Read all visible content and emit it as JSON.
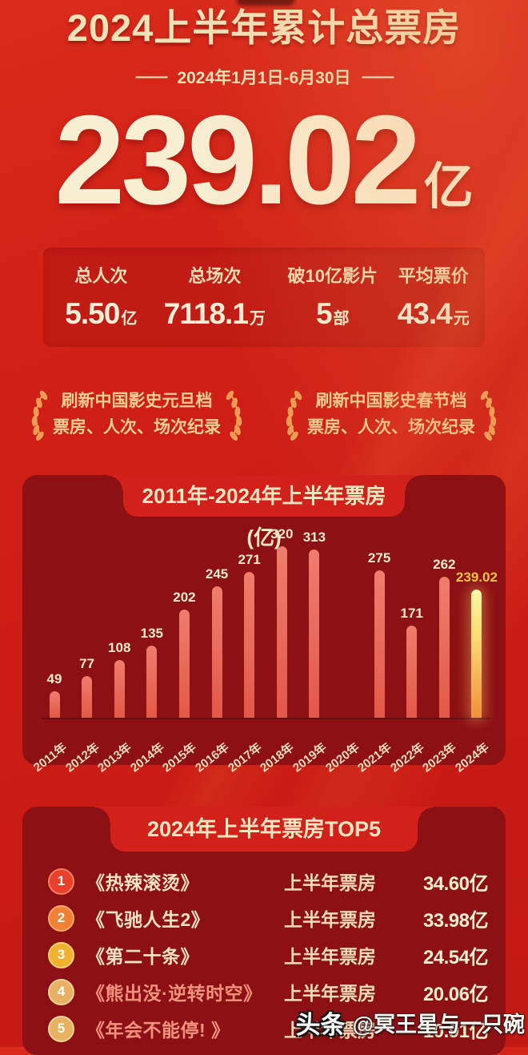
{
  "header": {
    "title": "2024上半年累计总票房",
    "date_dash": "——",
    "date_range": "2024年1月1日-6月30日",
    "total_value": "239.02",
    "total_unit": "亿"
  },
  "stats": {
    "items": [
      {
        "label": "总人次",
        "value": "5.50",
        "unit": "亿"
      },
      {
        "label": "总场次",
        "value": "7118.1",
        "unit": "万"
      },
      {
        "label": "破10亿影片",
        "value": "5",
        "unit": "部"
      },
      {
        "label": "平均票价",
        "value": "43.4",
        "unit": "元"
      }
    ]
  },
  "badges": [
    {
      "line1": "刷新中国影史元旦档",
      "line2": "票房、人次、场次纪录"
    },
    {
      "line1": "刷新中国影史春节档",
      "line2": "票房、人次、场次纪录"
    }
  ],
  "chart_data": {
    "type": "bar",
    "title": "2011年-2024年上半年票房 (亿)",
    "categories": [
      "2011年",
      "2012年",
      "2013年",
      "2014年",
      "2015年",
      "2016年",
      "2017年",
      "2018年",
      "2019年",
      "2020年",
      "2021年",
      "2022年",
      "2023年",
      "2024年"
    ],
    "values": [
      49,
      77,
      108,
      135,
      202,
      245,
      271,
      320,
      313,
      null,
      275,
      171,
      262,
      239.02
    ],
    "labels": [
      "49",
      "77",
      "108",
      "135",
      "202",
      "245",
      "271",
      "320",
      "313",
      "",
      "275",
      "171",
      "262",
      "239.02"
    ],
    "highlight_index": 13,
    "ylim": [
      0,
      340
    ],
    "grid": false,
    "legend": false,
    "bar_color": "#e96a5d",
    "highlight_color_top": "#fdf4a4",
    "highlight_color_bottom": "#f0903e",
    "label_color": "#f6e9cb",
    "highlight_label_color": "#f3c443"
  },
  "top5": {
    "title": "2024年上半年票房TOP5",
    "row_label": "上半年票房",
    "rows": [
      {
        "rank": "1",
        "title": "《热辣滚烫》",
        "value": "34.60亿",
        "rank_bg": "#e8402a",
        "rank_ring": "#f47f62",
        "title_color": "#f5e3c4"
      },
      {
        "rank": "2",
        "title": "《飞驰人生2》",
        "value": "33.98亿",
        "rank_bg": "#f08033",
        "rank_ring": "#f7ab6a",
        "title_color": "#f5e3c4"
      },
      {
        "rank": "3",
        "title": "《第二十条》",
        "value": "24.54亿",
        "rank_bg": "#f0b12f",
        "rank_ring": "#f7d077",
        "title_color": "#f5e3c4"
      },
      {
        "rank": "4",
        "title": "《熊出没·逆转时空》",
        "value": "20.06亿",
        "rank_bg": "#e7b264",
        "rank_ring": "#f2d29a",
        "title_color": "#f0937e"
      },
      {
        "rank": "5",
        "title": "《年会不能停! 》",
        "value": "10.91亿",
        "rank_bg": "#e7b264",
        "rank_ring": "#f2d29a",
        "title_color": "#f0937e"
      }
    ]
  },
  "watermark": {
    "brand": "头条",
    "handle": "@冥王星与一只碗"
  },
  "colors": {
    "background": "#cf1f16",
    "panel_dark": "#8d1014",
    "tab_red": "#d2201a",
    "cream": "#f6e8c8",
    "gold": "#f4cf92",
    "laurel": "#ec9c54"
  }
}
